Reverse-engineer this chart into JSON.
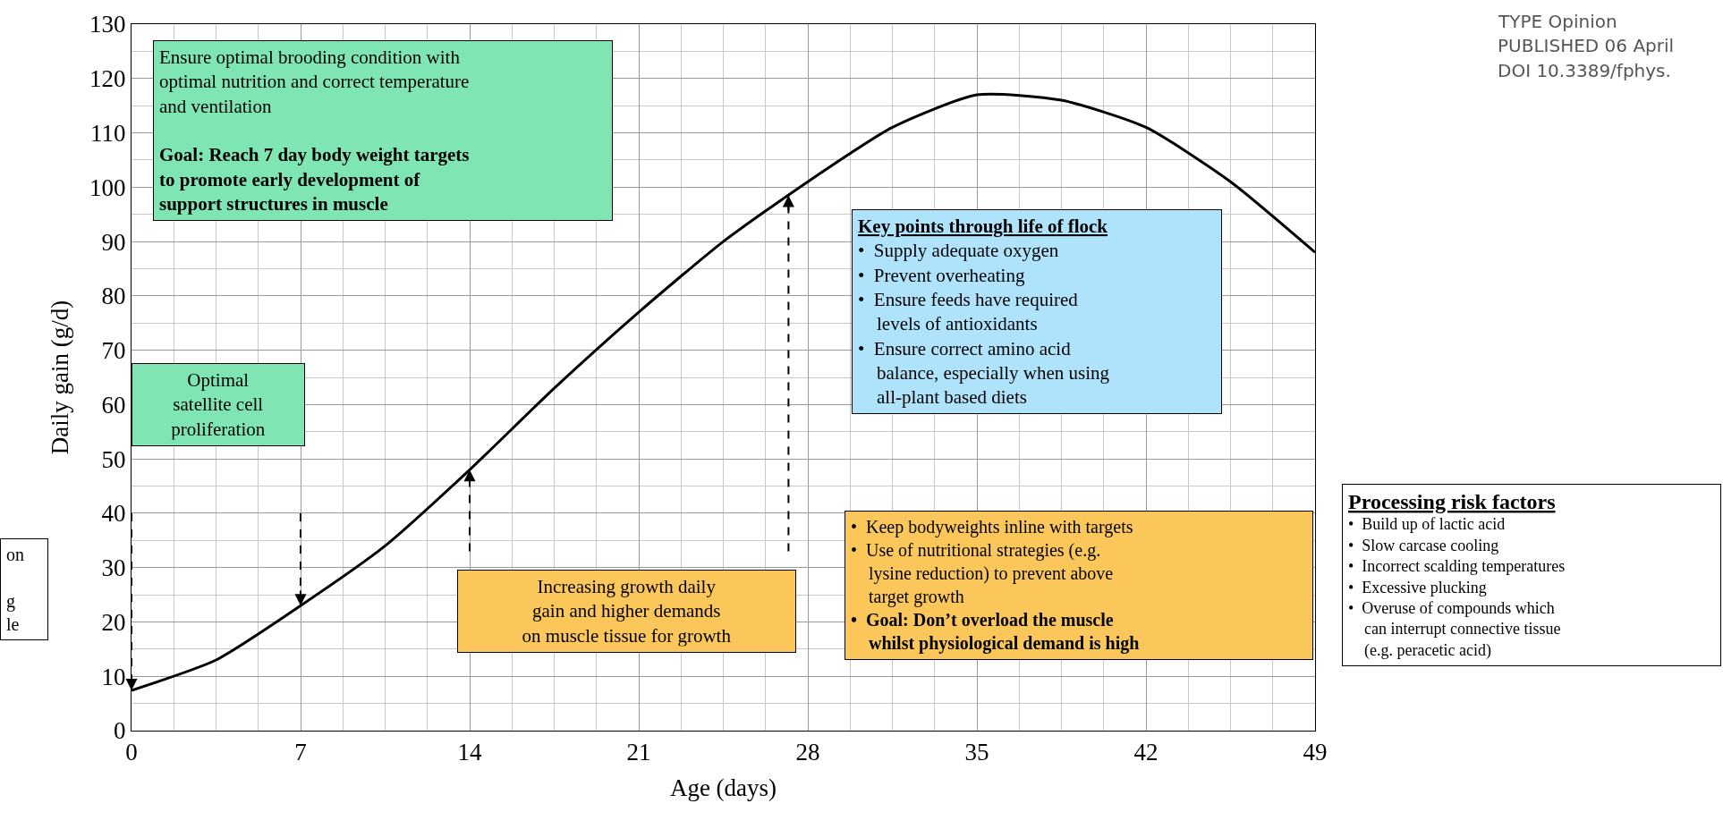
{
  "chart_data": {
    "type": "line",
    "xlabel": "Age (days)",
    "ylabel": "Daily gain (g/d)",
    "x": [
      0,
      3.5,
      7,
      10.5,
      14,
      17.5,
      21,
      24.5,
      28,
      31.5,
      35,
      38.5,
      42,
      45.5,
      49
    ],
    "values": [
      7.4,
      13,
      23,
      34,
      48,
      63,
      77,
      90,
      101,
      111,
      117,
      116,
      111,
      101,
      88
    ],
    "color": "#000000",
    "xlim": [
      0,
      49
    ],
    "ylim": [
      0,
      130
    ],
    "xticks": [
      0,
      7,
      14,
      21,
      28,
      35,
      42,
      49
    ],
    "yticks": [
      0,
      10,
      20,
      30,
      40,
      50,
      60,
      70,
      80,
      90,
      100,
      110,
      120,
      130
    ],
    "grid": true,
    "marker": "none",
    "line_style": "solid",
    "annotations": [
      "Ensure optimal brooding condition with\noptimal nutrition and correct temperature\nand ventilation",
      "Goal: Reach 7 day body weight targets\nto promote early development of\nsupport structures in muscle",
      "Optimal\nsatellite cell\nproliferation",
      "Key points through life of flock",
      "•  Supply adequate oxygen\n•  Prevent overheating\n•  Ensure feeds have required\n    levels of antioxidants\n•  Ensure correct amino acid\n    balance, especially when using\n    all-plant based diets",
      "Increasing growth daily\ngain and higher demands\non muscle tissue for growth",
      "•  Keep bodyweights inline with targets\n•  Use of nutritional strategies (e.g.\n    lysine reduction) to prevent above\n    target growth",
      "•  Goal: Don’t overload the muscle\n    whilst physiological demand is high",
      "Processing risk factors",
      "•  Build up of lactic acid\n•  Slow carcase cooling\n•  Incorrect scalding temperatures\n•  Excessive plucking\n•  Overuse of compounds which\n    can interrupt connective tissue\n    (e.g. peracetic acid)",
      "TYPE Opinion",
      "PUBLISHED 06 April",
      "DOI 10.3389/fphys.",
      "on\n\ng\nle"
    ]
  }
}
